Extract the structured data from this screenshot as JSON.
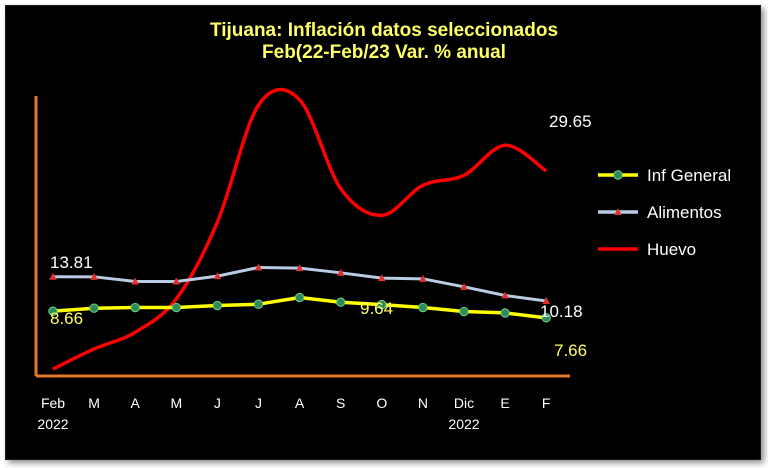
{
  "chart_data": {
    "type": "line",
    "title": "Tijuana: Inflación datos seleccionados",
    "subtitle": "Feb(22-Feb/23 Var. % anual",
    "xlabel": "",
    "ylabel": "",
    "categories": [
      [
        "Feb",
        "2022"
      ],
      [
        "M",
        ""
      ],
      [
        "A",
        ""
      ],
      [
        "M",
        ""
      ],
      [
        "J",
        ""
      ],
      [
        "J",
        ""
      ],
      [
        "A",
        ""
      ],
      [
        "S",
        ""
      ],
      [
        "O",
        ""
      ],
      [
        "N",
        ""
      ],
      [
        "Dic",
        "2022"
      ],
      [
        "E",
        ""
      ],
      [
        "F",
        ""
      ]
    ],
    "ylim": [
      0,
      35
    ],
    "grid": false,
    "legend_position": "right",
    "series": [
      {
        "name": "Inf General",
        "color": "#ffff00",
        "marker": "circle",
        "marker_color": "#2e8b57",
        "values": [
          8.66,
          9.1,
          9.2,
          9.2,
          9.5,
          9.7,
          10.7,
          10.0,
          9.64,
          9.2,
          8.6,
          8.4,
          7.66
        ],
        "labels": [
          {
            "index": 0,
            "text": "8.66"
          },
          {
            "index": 8,
            "text": "9.64"
          },
          {
            "index": 12,
            "text": "7.66"
          }
        ]
      },
      {
        "name": "Alimentos",
        "color": "#b8cce4",
        "marker": "triangle",
        "marker_color": "#e03030",
        "values": [
          13.81,
          13.8,
          13.1,
          13.1,
          13.9,
          15.2,
          15.1,
          14.4,
          13.6,
          13.5,
          12.3,
          11.0,
          10.18
        ],
        "labels": [
          {
            "index": 0,
            "text": "13.81"
          },
          {
            "index": 12,
            "text": "10.18"
          }
        ]
      },
      {
        "name": "Huevo",
        "color": "#ff0000",
        "marker": "none",
        "values": [
          0.0,
          3.0,
          5.5,
          10.5,
          22.0,
          39.5,
          40.3,
          27.0,
          23.0,
          27.5,
          29.0,
          33.5,
          29.65
        ],
        "labels": [
          {
            "index": 12,
            "text": "29.65"
          }
        ]
      }
    ]
  }
}
